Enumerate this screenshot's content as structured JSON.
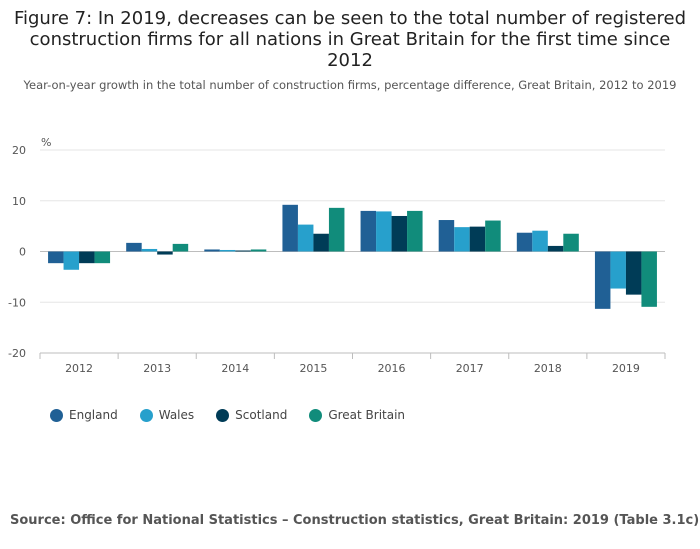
{
  "title": "Figure 7: In 2019, decreases can be seen to the total number of registered construction firms for all nations in Great Britain for the first time since 2012",
  "subtitle": "Year-on-year growth in the total number of construction firms, percentage difference, Great Britain, 2012 to 2019",
  "source": "Source: Office for National Statistics – Construction statistics, Great Britain: 2019 (Table 3.1c)",
  "chart_data": {
    "type": "bar",
    "ylabel": "%",
    "ylim": [
      -20,
      20
    ],
    "yticks": [
      20,
      10,
      0,
      -10,
      -20
    ],
    "categories": [
      "2012",
      "2013",
      "2014",
      "2015",
      "2016",
      "2017",
      "2018",
      "2019"
    ],
    "legend_position": "bottom-left",
    "grid": true,
    "series": [
      {
        "name": "England",
        "color": "#206095",
        "values": [
          -2.3,
          1.7,
          0.4,
          9.2,
          8.0,
          6.2,
          3.7,
          -11.3
        ]
      },
      {
        "name": "Wales",
        "color": "#27a0cc",
        "values": [
          -3.6,
          0.5,
          0.3,
          5.3,
          7.9,
          4.8,
          4.1,
          -7.3
        ]
      },
      {
        "name": "Scotland",
        "color": "#003c57",
        "values": [
          -2.3,
          -0.6,
          0.2,
          3.5,
          7.0,
          4.9,
          1.1,
          -8.5
        ]
      },
      {
        "name": "Great Britain",
        "color": "#118c7b",
        "values": [
          -2.3,
          1.5,
          0.4,
          8.6,
          8.0,
          6.1,
          3.5,
          -10.9
        ]
      }
    ]
  }
}
